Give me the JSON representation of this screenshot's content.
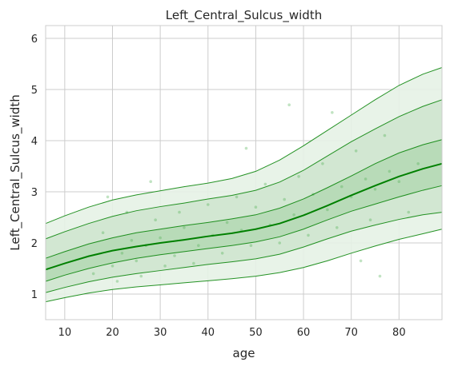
{
  "chart_data": {
    "type": "line",
    "title": "Left_Central_Sulcus_width",
    "xlabel": "age",
    "ylabel": "Left_Central_Sulcus_width",
    "xlim": [
      6,
      89
    ],
    "ylim": [
      0.5,
      6.25
    ],
    "x_ticks": [
      10,
      20,
      30,
      40,
      50,
      60,
      70,
      80
    ],
    "y_ticks": [
      1,
      2,
      3,
      4,
      5,
      6
    ],
    "grid": true,
    "colors": {
      "line": "#008000",
      "band_light": "#e6f2e6",
      "band_mid": "#cfe6cf",
      "band_dark": "#b5d9b5",
      "scatter": "#4caf50"
    },
    "x": [
      6,
      10,
      15,
      20,
      25,
      30,
      35,
      40,
      45,
      50,
      55,
      60,
      65,
      70,
      75,
      80,
      85,
      89
    ],
    "series": [
      {
        "values": [
          0.85,
          0.93,
          1.02,
          1.09,
          1.14,
          1.18,
          1.22,
          1.26,
          1.3,
          1.35,
          1.42,
          1.52,
          1.65,
          1.8,
          1.94,
          2.07,
          2.18,
          2.27
        ]
      },
      {
        "values": [
          1.03,
          1.13,
          1.24,
          1.33,
          1.4,
          1.46,
          1.52,
          1.58,
          1.63,
          1.69,
          1.78,
          1.92,
          2.08,
          2.23,
          2.35,
          2.46,
          2.55,
          2.6
        ]
      },
      {
        "values": [
          1.25,
          1.37,
          1.5,
          1.61,
          1.7,
          1.77,
          1.83,
          1.89,
          1.95,
          2.02,
          2.12,
          2.27,
          2.45,
          2.62,
          2.76,
          2.9,
          3.03,
          3.12
        ]
      },
      {
        "values": [
          1.48,
          1.6,
          1.74,
          1.85,
          1.93,
          2.0,
          2.06,
          2.13,
          2.19,
          2.27,
          2.38,
          2.54,
          2.73,
          2.93,
          3.12,
          3.3,
          3.45,
          3.55
        ]
      },
      {
        "values": [
          1.7,
          1.83,
          1.98,
          2.1,
          2.2,
          2.27,
          2.34,
          2.4,
          2.47,
          2.55,
          2.68,
          2.86,
          3.08,
          3.31,
          3.55,
          3.76,
          3.92,
          4.02
        ]
      },
      {
        "values": [
          2.08,
          2.22,
          2.38,
          2.52,
          2.63,
          2.71,
          2.78,
          2.86,
          2.93,
          3.03,
          3.19,
          3.42,
          3.7,
          3.98,
          4.23,
          4.47,
          4.67,
          4.8
        ]
      },
      {
        "values": [
          2.38,
          2.53,
          2.7,
          2.84,
          2.94,
          3.02,
          3.1,
          3.17,
          3.26,
          3.4,
          3.62,
          3.9,
          4.2,
          4.5,
          4.8,
          5.08,
          5.3,
          5.43
        ]
      }
    ],
    "scatter_sample": [
      [
        20,
        1.55
      ],
      [
        22,
        1.8
      ],
      [
        24,
        2.05
      ],
      [
        25,
        1.65
      ],
      [
        27,
        1.95
      ],
      [
        30,
        2.1
      ],
      [
        33,
        1.75
      ],
      [
        35,
        2.3
      ],
      [
        38,
        1.95
      ],
      [
        41,
        2.15
      ],
      [
        44,
        2.4
      ],
      [
        47,
        2.25
      ],
      [
        50,
        2.7
      ],
      [
        53,
        2.35
      ],
      [
        56,
        2.85
      ],
      [
        58,
        2.55
      ],
      [
        62,
        2.95
      ],
      [
        65,
        2.65
      ],
      [
        68,
        3.1
      ],
      [
        70,
        2.9
      ],
      [
        73,
        3.25
      ],
      [
        75,
        3.05
      ],
      [
        78,
        3.4
      ],
      [
        80,
        3.2
      ],
      [
        84,
        3.55
      ],
      [
        16,
        1.4
      ],
      [
        18,
        2.2
      ],
      [
        21,
        1.25
      ],
      [
        23,
        2.6
      ],
      [
        26,
        1.35
      ],
      [
        29,
        2.45
      ],
      [
        31,
        1.55
      ],
      [
        34,
        2.6
      ],
      [
        37,
        1.6
      ],
      [
        40,
        2.75
      ],
      [
        43,
        1.8
      ],
      [
        46,
        2.9
      ],
      [
        49,
        1.95
      ],
      [
        52,
        3.15
      ],
      [
        55,
        2.0
      ],
      [
        59,
        3.3
      ],
      [
        61,
        2.15
      ],
      [
        64,
        3.55
      ],
      [
        67,
        2.3
      ],
      [
        71,
        3.8
      ],
      [
        74,
        2.45
      ],
      [
        77,
        4.1
      ],
      [
        82,
        2.6
      ],
      [
        57,
        4.7
      ],
      [
        66,
        4.55
      ],
      [
        48,
        3.85
      ],
      [
        76,
        1.35
      ],
      [
        72,
        1.65
      ],
      [
        19,
        2.9
      ],
      [
        28,
        3.2
      ]
    ]
  }
}
